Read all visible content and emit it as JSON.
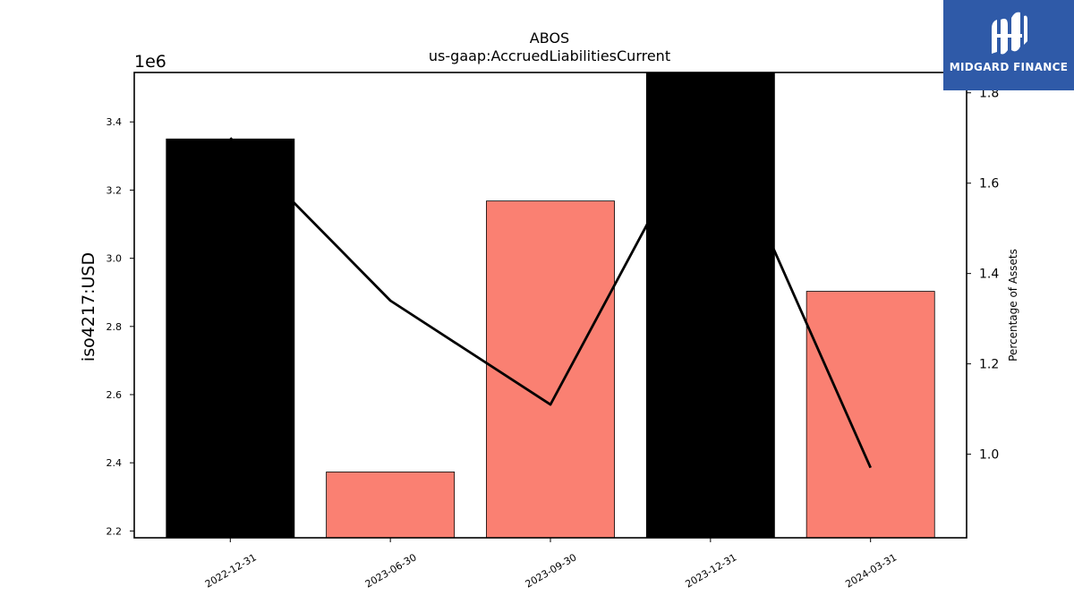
{
  "chart_data": {
    "type": "bar",
    "title": "ABOS",
    "subtitle": "us-gaap:AccruedLiabilitiesCurrent",
    "ylabel": "iso4217:USD",
    "y_offset_label": "1e6",
    "y2label": "Percentage of Assets",
    "categories": [
      "2022-12-31",
      "2023-06-30",
      "2023-09-30",
      "2023-12-31",
      "2024-03-31"
    ],
    "series": [
      {
        "type": "bar",
        "values": [
          3350000,
          2373000,
          3168000,
          3560000,
          2903000
        ],
        "colors": [
          "#000000",
          "#fa8072",
          "#fa8072",
          "#000000",
          "#fa8072"
        ]
      },
      {
        "type": "line",
        "axis": "right",
        "values": [
          1.7,
          1.34,
          1.11,
          1.77,
          0.97
        ],
        "color": "#000000"
      }
    ],
    "ylim": [
      2180000,
      3545000
    ],
    "yticks": [
      2200000,
      2400000,
      2600000,
      2800000,
      3000000,
      3200000,
      3400000
    ],
    "ytick_labels": [
      "2.2",
      "2.4",
      "2.6",
      "2.8",
      "3.0",
      "3.2",
      "3.4"
    ],
    "y2lim": [
      0.815,
      1.845
    ],
    "y2ticks": [
      1.0,
      1.2,
      1.4,
      1.6,
      1.8
    ],
    "y2tick_labels": [
      "1.0",
      "1.2",
      "1.4",
      "1.6",
      "1.8"
    ],
    "grid": false
  },
  "logo": {
    "text": "MIDGARD FINANCE",
    "color": "#2f5aa8"
  }
}
